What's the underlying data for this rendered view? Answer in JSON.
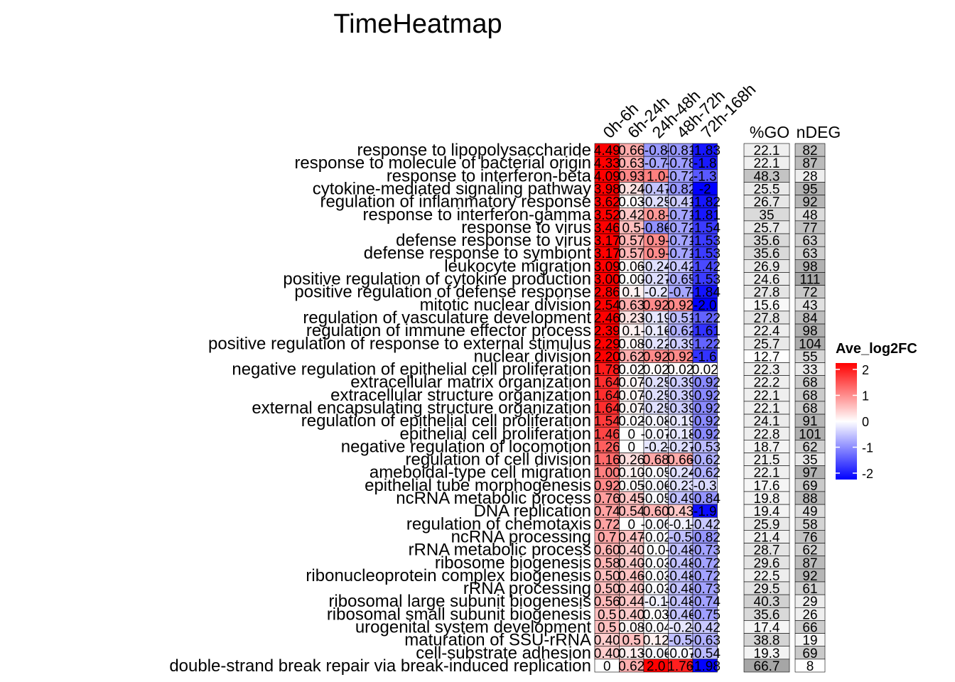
{
  "chart_data": {
    "type": "heatmap",
    "title": "TimeHeatmap",
    "columns": [
      "0h-6h",
      "6h-24h",
      "24h-48h",
      "48h-72h",
      "72h-168h"
    ],
    "annotation_headers": [
      "%GO",
      "nDEG"
    ],
    "rows": [
      {
        "term": "response to lipopolysaccharide",
        "values": [
          4.49,
          0.66,
          -0.8,
          -0.81,
          -1.83
        ],
        "labels": [
          "4.49",
          "0.66",
          "-0.8",
          "-0.81",
          "-1.83"
        ],
        "pct_go": "22.1",
        "n_deg": "82"
      },
      {
        "term": "response to molecule of bacterial origin",
        "values": [
          4.33,
          0.63,
          -0.7,
          -0.78,
          -1.8
        ],
        "labels": [
          "4.33",
          "0.63",
          "-0.7",
          "-0.78",
          "-1.8"
        ],
        "pct_go": "22.1",
        "n_deg": "87"
      },
      {
        "term": "response to interferon-beta",
        "values": [
          4.09,
          0.93,
          1.0,
          -0.72,
          -1.3
        ],
        "labels": [
          "4.09",
          "0.93",
          "1.0",
          "-0.72",
          "-1.3"
        ],
        "pct_go": "48.3",
        "n_deg": "28"
      },
      {
        "term": "cytokine-mediated signaling pathway",
        "values": [
          3.98,
          0.24,
          -0.47,
          -0.82,
          -2.0
        ],
        "labels": [
          "3.98",
          "0.24",
          "-0.47",
          "-0.82",
          "-2"
        ],
        "pct_go": "25.5",
        "n_deg": "95"
      },
      {
        "term": "regulation of inflammatory response",
        "values": [
          3.62,
          0.03,
          -0.25,
          -0.41,
          -1.82
        ],
        "labels": [
          "3.62",
          "0.03",
          "-0.25",
          "-0.41",
          "-1.82"
        ],
        "pct_go": "26.7",
        "n_deg": "92"
      },
      {
        "term": "response to interferon-gamma",
        "values": [
          3.52,
          0.42,
          0.8,
          -0.71,
          -1.81
        ],
        "labels": [
          "3.52",
          "0.42",
          "0.8",
          "-0.71",
          "-1.81"
        ],
        "pct_go": "35",
        "n_deg": "48"
      },
      {
        "term": "response to virus",
        "values": [
          3.46,
          0.5,
          -0.86,
          -0.72,
          -1.54
        ],
        "labels": [
          "3.46",
          "0.5",
          "-0.86",
          "-0.72",
          "-1.54"
        ],
        "pct_go": "25.7",
        "n_deg": "77"
      },
      {
        "term": "defense response to virus",
        "values": [
          3.17,
          0.57,
          0.9,
          -0.71,
          -1.53
        ],
        "labels": [
          "3.17",
          "0.57",
          "0.9",
          "-0.71",
          "-1.53"
        ],
        "pct_go": "35.6",
        "n_deg": "63"
      },
      {
        "term": "defense response to symbiont",
        "values": [
          3.17,
          0.57,
          0.9,
          -0.71,
          -1.53
        ],
        "labels": [
          "3.17",
          "0.57",
          "0.9",
          "-0.71",
          "-1.53"
        ],
        "pct_go": "35.6",
        "n_deg": "63"
      },
      {
        "term": "leukocyte migration",
        "values": [
          3.09,
          0.06,
          -0.24,
          -0.42,
          -1.42
        ],
        "labels": [
          "3.09",
          "0.06",
          "-0.24",
          "-0.42",
          "-1.42"
        ],
        "pct_go": "26.9",
        "n_deg": "98"
      },
      {
        "term": "positive regulation of cytokine production",
        "values": [
          3.0,
          0.0,
          -0.27,
          -0.65,
          -1.53
        ],
        "labels": [
          "3.00",
          "0.00",
          "-0.27",
          "-0.65",
          "-1.53"
        ],
        "pct_go": "24.6",
        "n_deg": "111"
      },
      {
        "term": "positive regulation of defense response",
        "values": [
          2.86,
          0.1,
          -0.2,
          -0.7,
          -1.84
        ],
        "labels": [
          "2.86",
          "0.1",
          "-0.2",
          "-0.7",
          "-1.84"
        ],
        "pct_go": "27.8",
        "n_deg": "72"
      },
      {
        "term": "mitotic nuclear division",
        "values": [
          2.54,
          0.63,
          0.92,
          0.92,
          -2.0
        ],
        "labels": [
          "2.54",
          "0.63",
          "0.92",
          "0.92",
          "-2.0"
        ],
        "pct_go": "15.6",
        "n_deg": "43"
      },
      {
        "term": "regulation of vasculature development",
        "values": [
          2.46,
          0.23,
          -0.19,
          -0.51,
          -1.22
        ],
        "labels": [
          "2.46",
          "0.23",
          "-0.19",
          "-0.51",
          "-1.22"
        ],
        "pct_go": "27.8",
        "n_deg": "84"
      },
      {
        "term": "regulation of immune effector process",
        "values": [
          2.39,
          0.1,
          -0.16,
          -0.62,
          -1.61
        ],
        "labels": [
          "2.39",
          "0.1",
          "-0.16",
          "-0.62",
          "-1.61"
        ],
        "pct_go": "22.4",
        "n_deg": "98"
      },
      {
        "term": "positive regulation of response to external stimulus",
        "values": [
          2.29,
          0.08,
          -0.22,
          -0.39,
          -1.22
        ],
        "labels": [
          "2.29",
          "0.08",
          "-0.22",
          "-0.39",
          "-1.22"
        ],
        "pct_go": "25.7",
        "n_deg": "104"
      },
      {
        "term": "nuclear division",
        "values": [
          2.2,
          0.62,
          0.92,
          0.92,
          -1.6
        ],
        "labels": [
          "2.20",
          "0.62",
          "0.92",
          "0.92",
          "-1.6"
        ],
        "pct_go": "12.7",
        "n_deg": "55"
      },
      {
        "term": "negative regulation of epithelial cell proliferation",
        "values": [
          1.78,
          0.02,
          0.02,
          0.02,
          0.02
        ],
        "labels": [
          "1.78",
          "0.02",
          "0.02",
          "0.02",
          "0.02"
        ],
        "pct_go": "22.3",
        "n_deg": "33"
      },
      {
        "term": "extracellular matrix organization",
        "values": [
          1.64,
          0.07,
          -0.25,
          -0.39,
          -0.92
        ],
        "labels": [
          "1.64",
          "0.07",
          "-0.25",
          "-0.39",
          "-0.92"
        ],
        "pct_go": "22.2",
        "n_deg": "68"
      },
      {
        "term": "extracellular structure organization",
        "values": [
          1.64,
          0.07,
          -0.25,
          -0.39,
          -0.92
        ],
        "labels": [
          "1.64",
          "0.07",
          "-0.25",
          "-0.39",
          "-0.92"
        ],
        "pct_go": "22.1",
        "n_deg": "68"
      },
      {
        "term": "external encapsulating structure organization",
        "values": [
          1.64,
          0.07,
          -0.25,
          -0.39,
          -0.92
        ],
        "labels": [
          "1.64",
          "0.07",
          "-0.25",
          "-0.39",
          "-0.92"
        ],
        "pct_go": "22.1",
        "n_deg": "68"
      },
      {
        "term": "regulation of epithelial cell proliferation",
        "values": [
          1.54,
          0.02,
          -0.08,
          -0.19,
          -0.92
        ],
        "labels": [
          "1.54",
          "0.02",
          "-0.08",
          "-0.19",
          "-0.92"
        ],
        "pct_go": "24.1",
        "n_deg": "91"
      },
      {
        "term": "epithelial cell proliferation",
        "values": [
          1.46,
          0.0,
          -0.07,
          -0.18,
          -0.92
        ],
        "labels": [
          "1.46",
          "0",
          "-0.07",
          "-0.18",
          "-0.92"
        ],
        "pct_go": "22.8",
        "n_deg": "101"
      },
      {
        "term": "negative regulation of locomotion",
        "values": [
          1.26,
          0.0,
          -0.2,
          -0.27,
          -0.53
        ],
        "labels": [
          "1.26",
          "0",
          "-0.2",
          "-0.27",
          "-0.53"
        ],
        "pct_go": "18.7",
        "n_deg": "62"
      },
      {
        "term": "regulation of cell division",
        "values": [
          1.16,
          0.26,
          0.68,
          0.66,
          -0.62
        ],
        "labels": [
          "1.16",
          "0.26",
          "0.68",
          "0.66",
          "-0.62"
        ],
        "pct_go": "21.5",
        "n_deg": "35"
      },
      {
        "term": "ameboidal-type cell migration",
        "values": [
          1.0,
          0.1,
          -0.05,
          -0.24,
          -0.62
        ],
        "labels": [
          "1.00",
          "0.10",
          "-0.05",
          "-0.24",
          "-0.62"
        ],
        "pct_go": "22.1",
        "n_deg": "97"
      },
      {
        "term": "epithelial tube morphogenesis",
        "values": [
          0.92,
          0.05,
          -0.06,
          -0.23,
          -0.3
        ],
        "labels": [
          "0.92",
          "0.05",
          "-0.06",
          "-0.23",
          "-0.3"
        ],
        "pct_go": "17.6",
        "n_deg": "69"
      },
      {
        "term": "ncRNA metabolic process",
        "values": [
          0.76,
          0.45,
          -0.05,
          -0.49,
          -0.84
        ],
        "labels": [
          "0.76",
          "0.45",
          "-0.05",
          "-0.49",
          "-0.84"
        ],
        "pct_go": "19.8",
        "n_deg": "88"
      },
      {
        "term": "DNA replication",
        "values": [
          0.74,
          0.54,
          0.6,
          0.43,
          -1.9
        ],
        "labels": [
          "0.74",
          "0.54",
          "0.60",
          "0.43",
          "-1.9"
        ],
        "pct_go": "19.4",
        "n_deg": "49"
      },
      {
        "term": "regulation of chemotaxis",
        "values": [
          0.72,
          0.0,
          -0.06,
          -0.1,
          -0.42
        ],
        "labels": [
          "0.72",
          "0",
          "-0.06",
          "-0.1",
          "-0.42"
        ],
        "pct_go": "25.9",
        "n_deg": "58"
      },
      {
        "term": "ncRNA processing",
        "values": [
          0.7,
          0.47,
          -0.02,
          -0.5,
          -0.82
        ],
        "labels": [
          "0.7",
          "0.47",
          "-0.02",
          "-0.5",
          "-0.82"
        ],
        "pct_go": "21.4",
        "n_deg": "76"
      },
      {
        "term": "rRNA metabolic process",
        "values": [
          0.6,
          0.4,
          0.0,
          -0.48,
          -0.73
        ],
        "labels": [
          "0.60",
          "0.40",
          "0.0",
          "-0.48",
          "-0.73"
        ],
        "pct_go": "28.7",
        "n_deg": "62"
      },
      {
        "term": "ribosome biogenesis",
        "values": [
          0.58,
          0.4,
          -0.03,
          -0.48,
          -0.72
        ],
        "labels": [
          "0.58",
          "0.40",
          "-0.03",
          "-0.48",
          "-0.72"
        ],
        "pct_go": "29.6",
        "n_deg": "87"
      },
      {
        "term": "ribonucleoprotein complex biogenesis",
        "values": [
          0.5,
          0.46,
          -0.03,
          -0.48,
          -0.72
        ],
        "labels": [
          "0.50",
          "0.46",
          "-0.03",
          "-0.48",
          "-0.72"
        ],
        "pct_go": "22.5",
        "n_deg": "92"
      },
      {
        "term": "rRNA processing",
        "values": [
          0.5,
          0.4,
          -0.03,
          -0.48,
          -0.73
        ],
        "labels": [
          "0.50",
          "0.40",
          "-0.03",
          "-0.48",
          "-0.73"
        ],
        "pct_go": "29.5",
        "n_deg": "61"
      },
      {
        "term": "ribosomal large subunit biogenesis",
        "values": [
          0.56,
          0.44,
          -0.1,
          -0.48,
          -0.74
        ],
        "labels": [
          "0.56",
          "0.44",
          "-0.1",
          "-0.48",
          "-0.74"
        ],
        "pct_go": "40.3",
        "n_deg": "29"
      },
      {
        "term": "ribosomal small subunit biogenesis",
        "values": [
          0.5,
          0.4,
          0.03,
          -0.46,
          -0.75
        ],
        "labels": [
          "0.5",
          "0.40",
          "0.03",
          "-0.46",
          "-0.75"
        ],
        "pct_go": "35.6",
        "n_deg": "26"
      },
      {
        "term": "urogenital system development",
        "values": [
          0.5,
          0.08,
          -0.04,
          -0.2,
          -0.42
        ],
        "labels": [
          "0.5",
          "0.08",
          "-0.04",
          "-0.2",
          "-0.42"
        ],
        "pct_go": "17.4",
        "n_deg": "66"
      },
      {
        "term": "maturation of SSU-rRNA",
        "values": [
          0.4,
          0.5,
          0.12,
          -0.5,
          -0.63
        ],
        "labels": [
          "0.40",
          "0.5",
          "0.12",
          "-0.5",
          "-0.63"
        ],
        "pct_go": "38.8",
        "n_deg": "19"
      },
      {
        "term": "cell-substrate adhesion",
        "values": [
          0.4,
          0.13,
          -0.06,
          -0.07,
          -0.54
        ],
        "labels": [
          "0.40",
          "0.13",
          "-0.06",
          "-0.07",
          "-0.54"
        ],
        "pct_go": "19.3",
        "n_deg": "69"
      },
      {
        "term": "double-strand break repair via break-induced replication",
        "values": [
          0.0,
          0.62,
          2.0,
          1.76,
          -1.98
        ],
        "labels": [
          "0",
          "0.62",
          "2.0",
          "1.76",
          "-1.98"
        ],
        "pct_go": "66.7",
        "n_deg": "8"
      }
    ],
    "legend": {
      "title": "Ave_log2FC",
      "ticks": [
        2,
        1,
        0,
        -1,
        -2
      ],
      "tick_labels": [
        "2",
        "1",
        "0",
        "-1",
        "-2"
      ],
      "range": [
        -2,
        2
      ],
      "colors": {
        "low": "#0000ff",
        "mid": "#ffffff",
        "high": "#ff0000"
      },
      "placement": "right"
    },
    "annotation_colors": {
      "low": "#ffffff",
      "high": "#a6a6a6"
    },
    "grid": true
  }
}
